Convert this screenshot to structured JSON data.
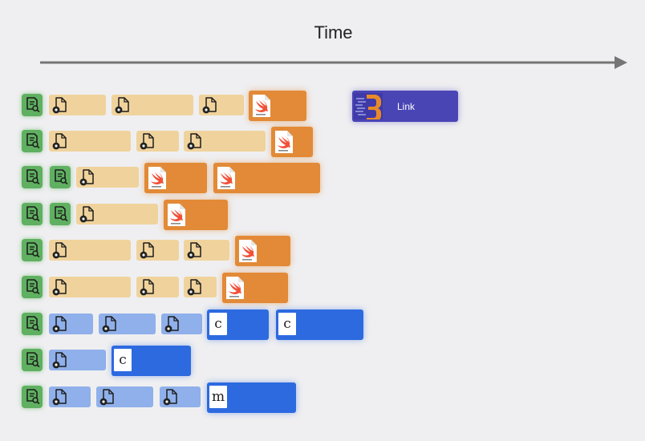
{
  "title": "Time",
  "link_label": "Link",
  "language_letters": {
    "c": "c",
    "m": "m"
  },
  "colors": {
    "scan": "#5fb060",
    "compile_swift_project": "#f0d39c",
    "compile_c_project": "#8fb0ea",
    "swift": "#e28a37",
    "c_file": "#2d6ae0",
    "link": "#4a45b5",
    "arrow": "#757575"
  },
  "icons": {
    "scan": "document-search-icon",
    "compile": "file-gear-icon",
    "swift": "swift-file-icon",
    "c_file": "c-file-icon",
    "m_file": "m-file-icon",
    "link": "linker-icon"
  }
}
